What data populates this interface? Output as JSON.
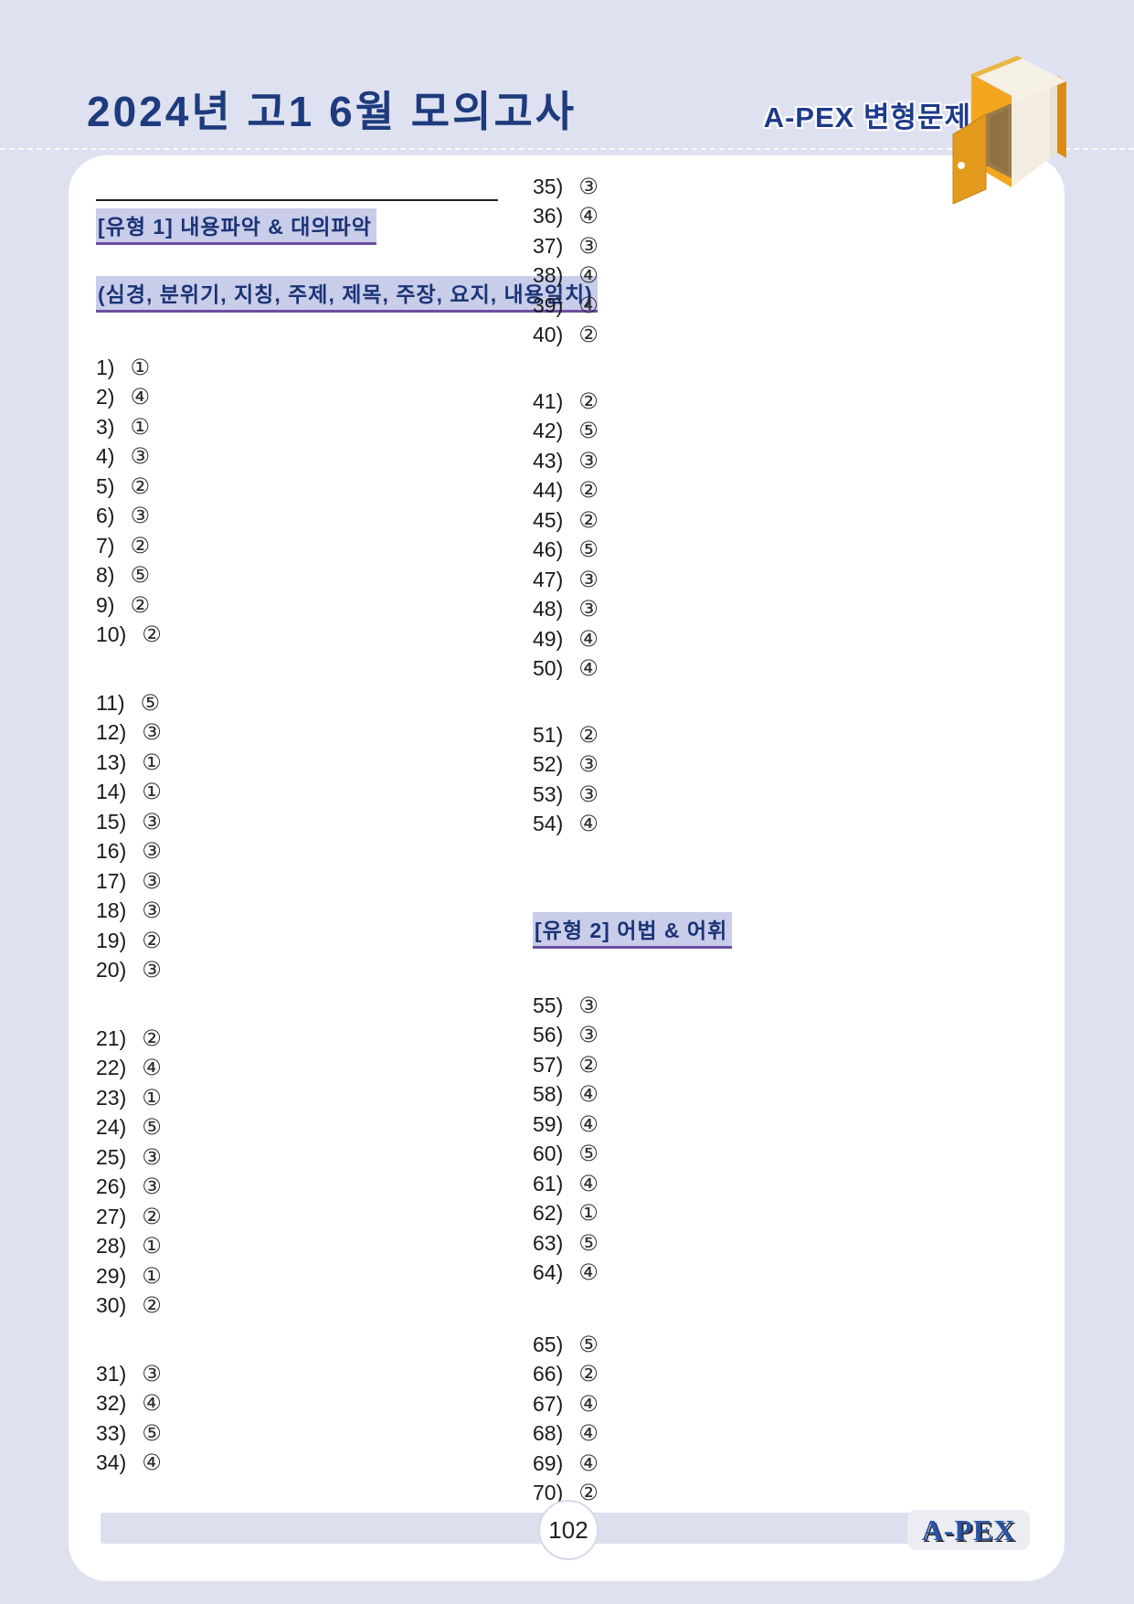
{
  "page": {
    "title": "2024년 고1 6월 모의고사",
    "brand": "A-PEX 변형문제",
    "page_number": "102",
    "footer_logo": "A-PEX"
  },
  "colors": {
    "background": "#dee1f0",
    "card": "#ffffff",
    "navy": "#1e3b7d",
    "section_highlight": "#c9cde9",
    "section_underline": "#6b4fa1",
    "book_orange": "#f2a71f",
    "footer_bar": "#dcdfee"
  },
  "icons": {
    "book_door": "book-with-open-door-icon"
  },
  "sections": [
    {
      "title": "[유형 1] 내용파악 & 대의파악",
      "subtitle": "(심경, 분위기, 지칭, 주제, 제목, 주장, 요지, 내용일치)"
    },
    {
      "title": "[유형 2] 어법 & 어휘"
    }
  ],
  "answers": {
    "left": [
      [
        {
          "n": "1)",
          "c": "①"
        },
        {
          "n": "2)",
          "c": "④"
        },
        {
          "n": "3)",
          "c": "①"
        },
        {
          "n": "4)",
          "c": "③"
        },
        {
          "n": "5)",
          "c": "②"
        },
        {
          "n": "6)",
          "c": "③"
        },
        {
          "n": "7)",
          "c": "②"
        },
        {
          "n": "8)",
          "c": "⑤"
        },
        {
          "n": "9)",
          "c": "②"
        },
        {
          "n": "10)",
          "c": "②"
        }
      ],
      [
        {
          "n": "11)",
          "c": "⑤"
        },
        {
          "n": "12)",
          "c": "③"
        },
        {
          "n": "13)",
          "c": "①"
        },
        {
          "n": "14)",
          "c": "①"
        },
        {
          "n": "15)",
          "c": "③"
        },
        {
          "n": "16)",
          "c": "③"
        },
        {
          "n": "17)",
          "c": "③"
        },
        {
          "n": "18)",
          "c": "③"
        },
        {
          "n": "19)",
          "c": "②"
        },
        {
          "n": "20)",
          "c": "③"
        }
      ],
      [
        {
          "n": "21)",
          "c": "②"
        },
        {
          "n": "22)",
          "c": "④"
        },
        {
          "n": "23)",
          "c": "①"
        },
        {
          "n": "24)",
          "c": "⑤"
        },
        {
          "n": "25)",
          "c": "③"
        },
        {
          "n": "26)",
          "c": "③"
        },
        {
          "n": "27)",
          "c": "②"
        },
        {
          "n": "28)",
          "c": "①"
        },
        {
          "n": "29)",
          "c": "①"
        },
        {
          "n": "30)",
          "c": "②"
        }
      ],
      [
        {
          "n": "31)",
          "c": "③"
        },
        {
          "n": "32)",
          "c": "④"
        },
        {
          "n": "33)",
          "c": "⑤"
        },
        {
          "n": "34)",
          "c": "④"
        }
      ]
    ],
    "right_top": [
      [
        {
          "n": "35)",
          "c": "③"
        },
        {
          "n": "36)",
          "c": "④"
        },
        {
          "n": "37)",
          "c": "③"
        },
        {
          "n": "38)",
          "c": "④"
        },
        {
          "n": "39)",
          "c": "④"
        },
        {
          "n": "40)",
          "c": "②"
        }
      ],
      [
        {
          "n": "41)",
          "c": "②"
        },
        {
          "n": "42)",
          "c": "⑤"
        },
        {
          "n": "43)",
          "c": "③"
        },
        {
          "n": "44)",
          "c": "②"
        },
        {
          "n": "45)",
          "c": "②"
        },
        {
          "n": "46)",
          "c": "⑤"
        },
        {
          "n": "47)",
          "c": "③"
        },
        {
          "n": "48)",
          "c": "③"
        },
        {
          "n": "49)",
          "c": "④"
        },
        {
          "n": "50)",
          "c": "④"
        }
      ],
      [
        {
          "n": "51)",
          "c": "②"
        },
        {
          "n": "52)",
          "c": "③"
        },
        {
          "n": "53)",
          "c": "③"
        },
        {
          "n": "54)",
          "c": "④"
        }
      ]
    ],
    "right_bottom": [
      [
        {
          "n": "55)",
          "c": "③"
        },
        {
          "n": "56)",
          "c": "③"
        },
        {
          "n": "57)",
          "c": "②"
        },
        {
          "n": "58)",
          "c": "④"
        },
        {
          "n": "59)",
          "c": "④"
        },
        {
          "n": "60)",
          "c": "⑤"
        },
        {
          "n": "61)",
          "c": "④"
        },
        {
          "n": "62)",
          "c": "①"
        },
        {
          "n": "63)",
          "c": "⑤"
        },
        {
          "n": "64)",
          "c": "④"
        }
      ],
      [
        {
          "n": "65)",
          "c": "⑤"
        },
        {
          "n": "66)",
          "c": "②"
        },
        {
          "n": "67)",
          "c": "④"
        },
        {
          "n": "68)",
          "c": "④"
        },
        {
          "n": "69)",
          "c": "④"
        },
        {
          "n": "70)",
          "c": "②"
        }
      ]
    ]
  }
}
